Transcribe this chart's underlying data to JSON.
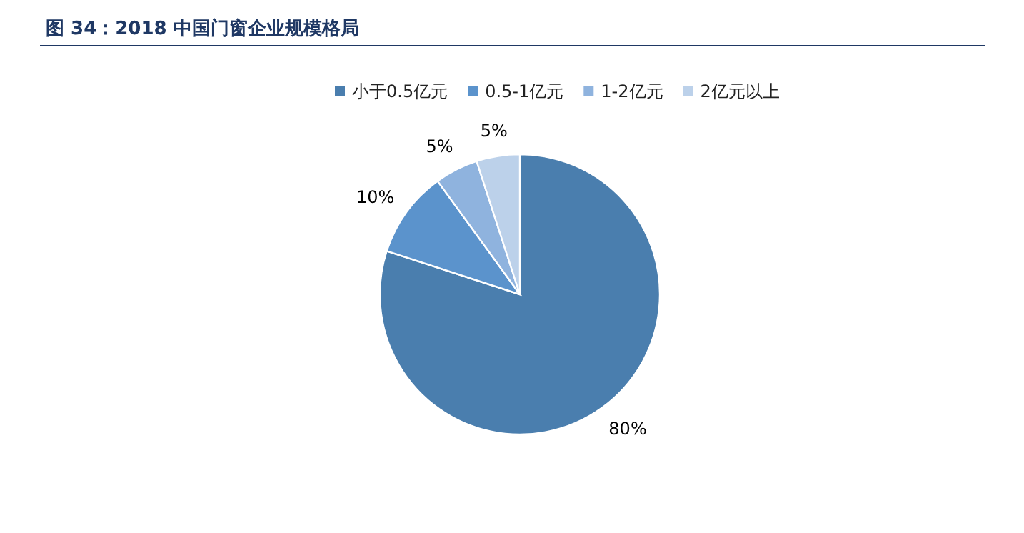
{
  "chart_data": {
    "type": "pie",
    "title": "图 34：2018 中国门窗企业规模格局",
    "categories": [
      "小于0.5亿元",
      "0.5-1亿元",
      "1-2亿元",
      "2亿元以上"
    ],
    "values": [
      80,
      10,
      5,
      5
    ],
    "colors": [
      "#4a7eae",
      "#5b93cc",
      "#8fb3de",
      "#bcd1ea"
    ],
    "value_labels": [
      "80%",
      "10%",
      "5%",
      "5%"
    ],
    "legend": "top"
  }
}
